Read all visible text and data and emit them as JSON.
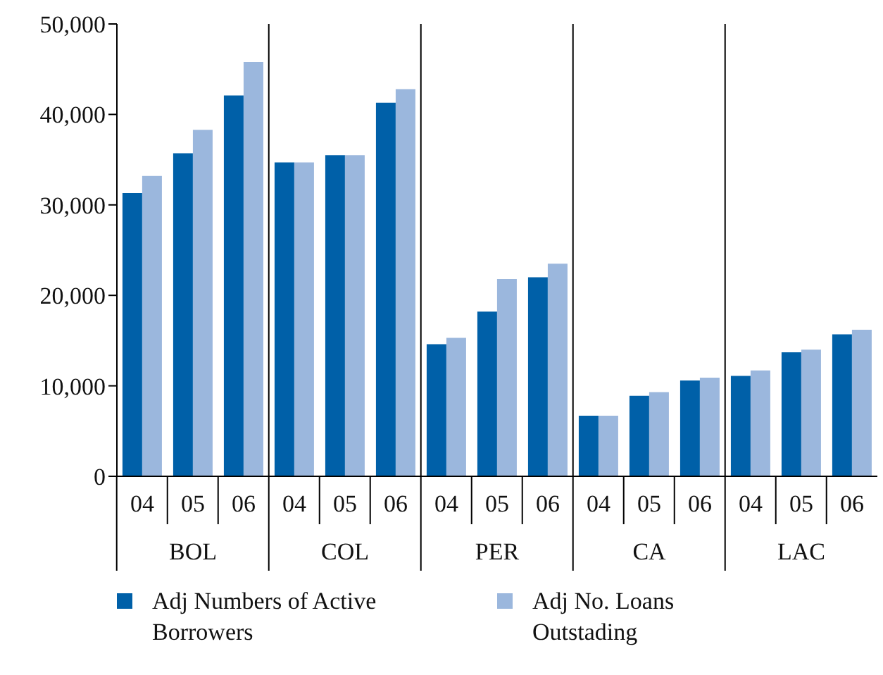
{
  "chart_data": {
    "type": "bar",
    "categories": [
      "04",
      "05",
      "06",
      "04",
      "05",
      "06",
      "04",
      "05",
      "06",
      "04",
      "05",
      "06",
      "04",
      "05",
      "06"
    ],
    "annotations": [
      "BOL",
      "COL",
      "PER",
      "CA",
      "LAC"
    ],
    "series": [
      {
        "name": "Adj Numbers of Active Borrowers",
        "color": "#0060a8",
        "values": [
          31300,
          35700,
          42100,
          34700,
          35500,
          41300,
          14600,
          18200,
          22000,
          6700,
          8900,
          10600,
          11100,
          13700,
          15700
        ]
      },
      {
        "name": "Adj No. Loans Outstading",
        "color": "#9bb7dd",
        "values": [
          33200,
          38300,
          45800,
          34700,
          35500,
          42800,
          15300,
          21800,
          23500,
          6700,
          9300,
          10900,
          11700,
          14000,
          16200
        ]
      }
    ],
    "ylim": [
      0,
      50000
    ],
    "yticks": [
      {
        "value": 0,
        "label": "0"
      },
      {
        "value": 10000,
        "label": "10,000"
      },
      {
        "value": 20000,
        "label": "20,000"
      },
      {
        "value": 30000,
        "label": "30,000"
      },
      {
        "value": 40000,
        "label": "40,000"
      },
      {
        "value": 50000,
        "label": "50,000"
      }
    ],
    "grid": false,
    "legend": "bottom"
  }
}
